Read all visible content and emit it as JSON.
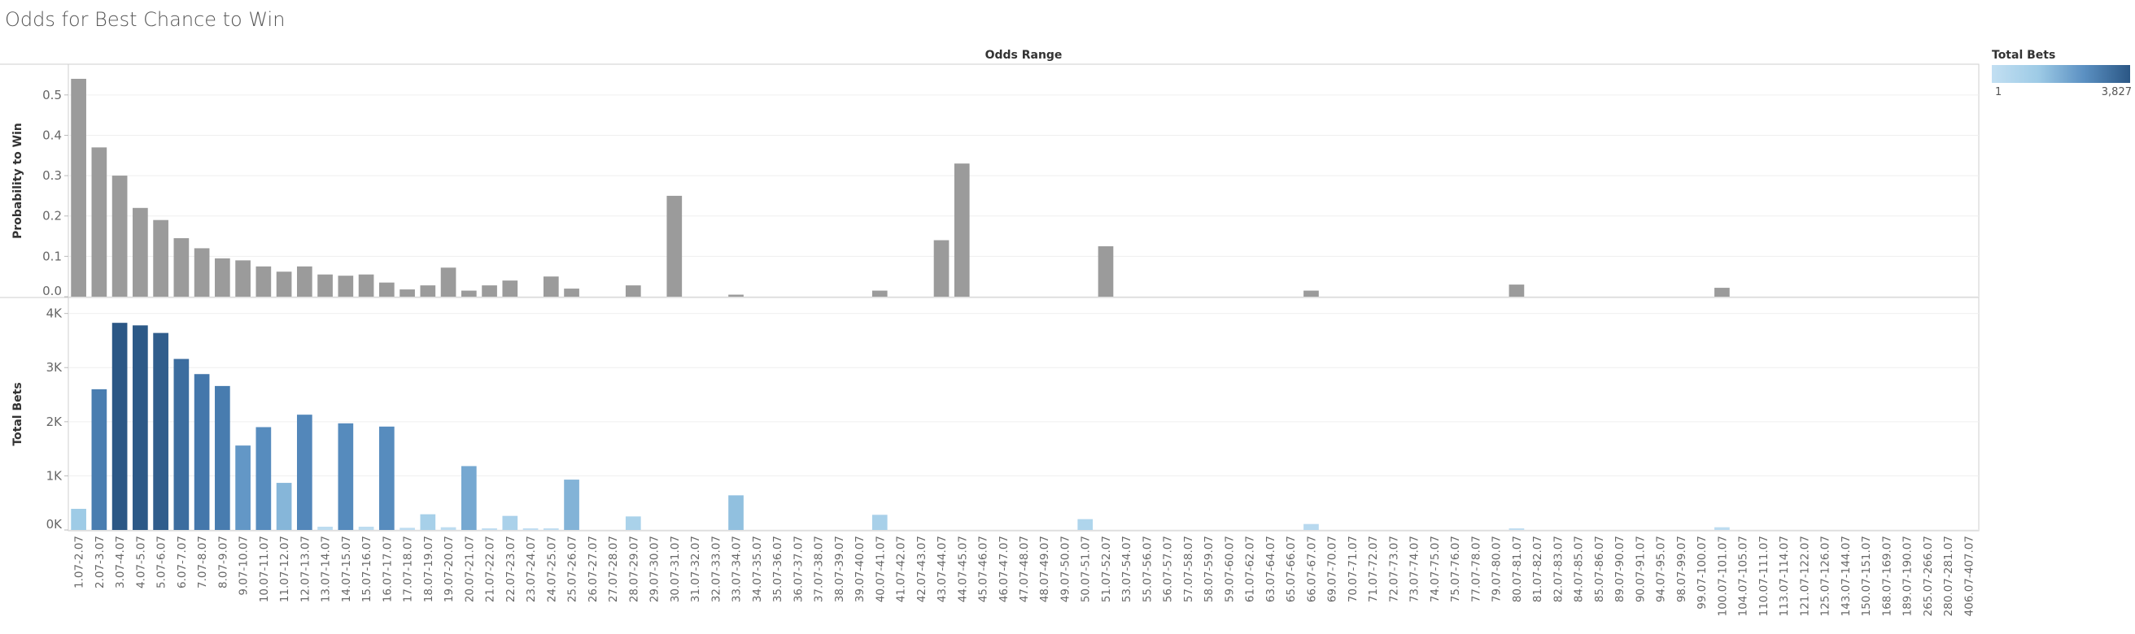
{
  "page": {
    "title": "Odds for Best Chance to Win"
  },
  "legend": {
    "title": "Total Bets",
    "min_label": "1",
    "max_label": "3,827",
    "color_min": "#c2dff2",
    "color_max": "#2b5785"
  },
  "chart_data": {
    "type": "bar",
    "column_header": "Odds Range",
    "categories": [
      "1.07-2.07",
      "2.07-3.07",
      "3.07-4.07",
      "4.07-5.07",
      "5.07-6.07",
      "6.07-7.07",
      "7.07-8.07",
      "8.07-9.07",
      "9.07-10.07",
      "10.07-11.07",
      "11.07-12.07",
      "12.07-13.07",
      "13.07-14.07",
      "14.07-15.07",
      "15.07-16.07",
      "16.07-17.07",
      "17.07-18.07",
      "18.07-19.07",
      "19.07-20.07",
      "20.07-21.07",
      "21.07-22.07",
      "22.07-23.07",
      "23.07-24.07",
      "24.07-25.07",
      "25.07-26.07",
      "26.07-27.07",
      "27.07-28.07",
      "28.07-29.07",
      "29.07-30.07",
      "30.07-31.07",
      "31.07-32.07",
      "32.07-33.07",
      "33.07-34.07",
      "34.07-35.07",
      "35.07-36.07",
      "36.07-37.07",
      "37.07-38.07",
      "38.07-39.07",
      "39.07-40.07",
      "40.07-41.07",
      "41.07-42.07",
      "42.07-43.07",
      "43.07-44.07",
      "44.07-45.07",
      "45.07-46.07",
      "46.07-47.07",
      "47.07-48.07",
      "48.07-49.07",
      "49.07-50.07",
      "50.07-51.07",
      "51.07-52.07",
      "53.07-54.07",
      "55.07-56.07",
      "56.07-57.07",
      "57.07-58.07",
      "58.07-59.07",
      "59.07-60.07",
      "61.07-62.07",
      "63.07-64.07",
      "65.07-66.07",
      "66.07-67.07",
      "69.07-70.07",
      "70.07-71.07",
      "71.07-72.07",
      "72.07-73.07",
      "73.07-74.07",
      "74.07-75.07",
      "75.07-76.07",
      "77.07-78.07",
      "79.07-80.07",
      "80.07-81.07",
      "81.07-82.07",
      "82.07-83.07",
      "84.07-85.07",
      "85.07-86.07",
      "89.07-90.07",
      "90.07-91.07",
      "94.07-95.07",
      "98.07-99.07",
      "99.07-100.07",
      "100.07-101.07",
      "104.07-105.07",
      "110.07-111.07",
      "113.07-114.07",
      "121.07-122.07",
      "125.07-126.07",
      "143.07-144.07",
      "150.07-151.07",
      "168.07-169.07",
      "189.07-190.07",
      "265.07-266.07",
      "280.07-281.07",
      "406.07-407.07"
    ],
    "panels": [
      {
        "ylabel": "Probability to Win",
        "ylim": [
          0,
          0.55
        ],
        "ticks": [
          0.0,
          0.1,
          0.2,
          0.3,
          0.4,
          0.5
        ],
        "tick_labels": [
          "0.0",
          "0.1",
          "0.2",
          "0.3",
          "0.4",
          "0.5"
        ],
        "color": "#9b9b9b",
        "values": [
          0.54,
          0.37,
          0.3,
          0.22,
          0.19,
          0.145,
          0.12,
          0.095,
          0.09,
          0.075,
          0.062,
          0.075,
          0.055,
          0.052,
          0.055,
          0.035,
          0.018,
          0.028,
          0.072,
          0.015,
          0.028,
          0.04,
          0,
          0.05,
          0.02,
          0,
          0,
          0.028,
          0,
          0.25,
          0,
          0,
          0.005,
          0,
          0,
          0,
          0,
          0,
          0,
          0.015,
          0,
          0,
          0.14,
          0.33,
          0,
          0,
          0,
          0,
          0,
          0,
          0.125,
          0,
          0,
          0,
          0,
          0,
          0,
          0,
          0,
          0,
          0.015,
          0,
          0,
          0,
          0,
          0,
          0,
          0,
          0,
          0,
          0.03,
          0,
          0,
          0,
          0,
          0,
          0,
          0,
          0,
          0,
          0.022,
          0,
          0,
          0,
          0,
          0,
          0,
          0,
          0,
          0,
          0,
          0,
          0
        ]
      },
      {
        "ylabel": "Total Bets",
        "ylim": [
          0,
          4100
        ],
        "ticks": [
          0,
          1000,
          2000,
          3000,
          4000
        ],
        "tick_labels": [
          "0K",
          "1K",
          "2K",
          "3K",
          "4K"
        ],
        "color_by_value": true,
        "values": [
          390,
          2600,
          3827,
          3780,
          3640,
          3160,
          2880,
          2660,
          1560,
          1900,
          870,
          2130,
          60,
          1970,
          60,
          1910,
          40,
          290,
          50,
          1180,
          30,
          260,
          10,
          20,
          930,
          0,
          0,
          250,
          0,
          0,
          0,
          0,
          640,
          0,
          0,
          0,
          0,
          0,
          0,
          280,
          0,
          0,
          0,
          0,
          0,
          0,
          0,
          0,
          0,
          200,
          0,
          0,
          0,
          0,
          0,
          0,
          0,
          0,
          0,
          0,
          110,
          0,
          0,
          0,
          0,
          0,
          0,
          0,
          0,
          0,
          20,
          0,
          0,
          0,
          0,
          0,
          0,
          0,
          0,
          0,
          50,
          0,
          0,
          0,
          0,
          0,
          0,
          0,
          0,
          0,
          0,
          0,
          0
        ]
      }
    ]
  }
}
